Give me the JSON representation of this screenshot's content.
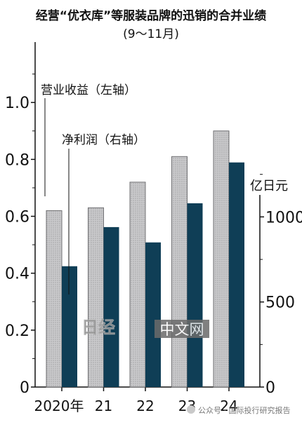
{
  "chart_data": {
    "type": "bar",
    "title": "经营“优衣库”等服装品牌的迅销的合并业绩",
    "subtitle": "(9～11月)",
    "categories": [
      "2020年",
      "21",
      "22",
      "23",
      "24"
    ],
    "series": [
      {
        "name": "营业收益（左轴）",
        "axis": "left",
        "values": [
          0.62,
          0.63,
          0.72,
          0.81,
          0.9
        ]
      },
      {
        "name": "净利润（右轴）",
        "axis": "right",
        "values": [
          710,
          940,
          850,
          1080,
          1320
        ]
      }
    ],
    "left_axis": {
      "ticks": [
        0,
        0.2,
        0.4,
        0.6,
        0.8,
        1.0
      ],
      "tick_labels": [
        "0",
        "0.2",
        "0.4",
        "0.6",
        "0.8",
        "1.0"
      ],
      "range": [
        0,
        1.2
      ]
    },
    "right_axis": {
      "unit_label": "亿日元",
      "ticks": [
        0,
        500,
        1000
      ],
      "tick_labels": [
        "0",
        "500",
        "1000"
      ],
      "range": [
        0,
        1500
      ]
    },
    "grid": false,
    "colors": {
      "revenue_fill": "#c7c7c9",
      "revenue_stroke": "#6f6f72",
      "profit_fill": "#0f3e56",
      "axis": "#111111"
    }
  },
  "watermarks": {
    "nikkei_logo": "日经",
    "nikkei_text": "中文网",
    "footer": "公众号 · 国际投行研究报告"
  }
}
